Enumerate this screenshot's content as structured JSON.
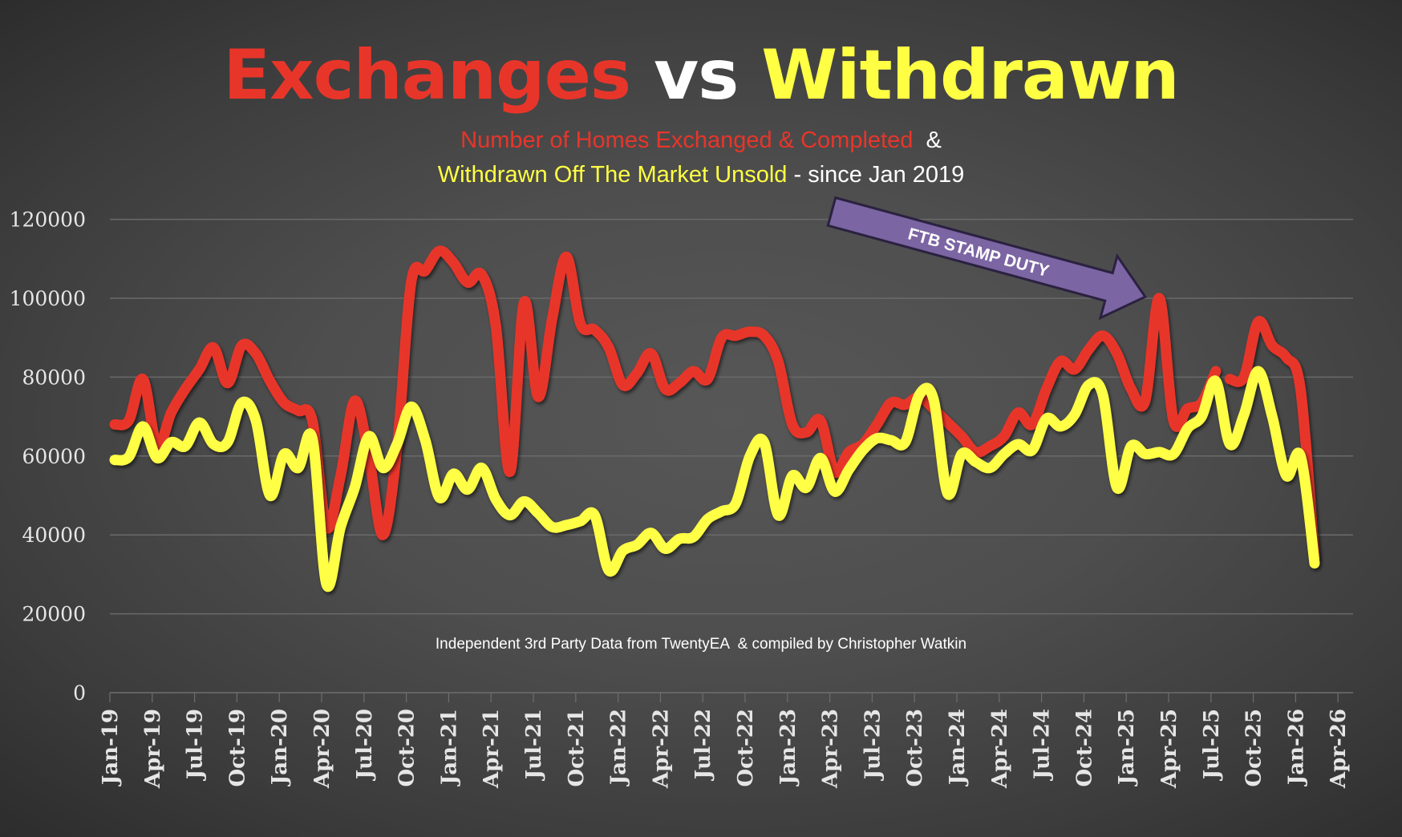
{
  "title": {
    "part1": "Exchanges",
    "part2": "vs",
    "part3": "Withdrawn"
  },
  "subtitle": {
    "line1_red": "Number of Homes Exchanged & Completed",
    "line1_white": "&",
    "line2_yellow": "Withdrawn Off The Market Unsold",
    "line2_white": "- since Jan 2019"
  },
  "footnote": "Independent 3rd Party Data from TwentyEA  & compiled by Christopher Watkin",
  "annotation": {
    "text": "FTB STAMP DUTY",
    "points_to": "Mar-25",
    "color": "#7B65A3"
  },
  "colors": {
    "exchanges": "#E8352A",
    "withdrawn": "#FFFF44",
    "grid": "#6a6a6a",
    "tick_text": "#E6E6E6"
  },
  "chart_data": {
    "type": "line",
    "title": "Exchanges vs Withdrawn",
    "subtitle": "Number of Homes Exchanged & Completed & Withdrawn Off The Market Unsold - since Jan 2019",
    "xlabel": "",
    "ylabel": "",
    "ylim": [
      0,
      120000
    ],
    "yticks": [
      "0",
      "20000",
      "40000",
      "60000",
      "80000",
      "100000",
      "120000"
    ],
    "ytick_values": [
      0,
      20000,
      40000,
      60000,
      80000,
      100000,
      120000
    ],
    "xticks": [
      "Jan-19",
      "Apr-19",
      "Jul-19",
      "Oct-19",
      "Jan-20",
      "Apr-20",
      "Jul-20",
      "Oct-20",
      "Jan-21",
      "Apr-21",
      "Jul-21",
      "Oct-21",
      "Jan-22",
      "Apr-22",
      "Jul-22",
      "Oct-22",
      "Jan-23",
      "Apr-23",
      "Jul-23",
      "Oct-23",
      "Jan-24",
      "Apr-24",
      "Jul-24",
      "Oct-24",
      "Jan-25",
      "Apr-25",
      "Jul-25",
      "Oct-25",
      "Jan-26",
      "Apr-26"
    ],
    "x_start": "Jan-19",
    "x_end": "Feb-26",
    "x_unit": "month",
    "grid": true,
    "legend": "none (series identified by title colours)",
    "series": [
      {
        "name": "Exchanges",
        "color": "#E8352A",
        "break_after_month_index": 78,
        "values": [
          68000,
          69000,
          79500,
          62500,
          71000,
          77000,
          82000,
          87500,
          78500,
          88000,
          86000,
          79000,
          73500,
          71500,
          69000,
          42000,
          55000,
          74000,
          60000,
          40000,
          62000,
          104000,
          107000,
          112000,
          109000,
          104000,
          106000,
          93000,
          56000,
          99000,
          75000,
          95000,
          110500,
          93500,
          92000,
          87500,
          78000,
          81000,
          86000,
          77000,
          78500,
          81500,
          79500,
          90000,
          90500,
          91500,
          90500,
          84000,
          68000,
          66000,
          69000,
          56000,
          61000,
          63000,
          68000,
          73500,
          73000,
          75000,
          72000,
          68500,
          65000,
          61000,
          62500,
          65000,
          71000,
          68000,
          77000,
          84000,
          82000,
          87000,
          90500,
          86000,
          77000,
          74000,
          100000,
          69000,
          72000,
          73500,
          81500,
          79500,
          80000,
          94000,
          88000,
          85000,
          77000,
          34000
        ]
      },
      {
        "name": "Withdrawn",
        "color": "#FFFF44",
        "values": [
          59000,
          59800,
          67500,
          59500,
          63500,
          62500,
          68500,
          63000,
          63500,
          73500,
          69000,
          50000,
          60500,
          57000,
          64500,
          27500,
          42000,
          52000,
          65000,
          57000,
          63000,
          72500,
          64000,
          49500,
          55500,
          51500,
          57000,
          49000,
          45000,
          48500,
          45500,
          42000,
          42500,
          43500,
          45000,
          31000,
          36000,
          37500,
          40500,
          36500,
          39000,
          39500,
          44000,
          46000,
          48000,
          60000,
          63500,
          45000,
          55000,
          52000,
          59500,
          51000,
          56500,
          61500,
          64500,
          64000,
          63500,
          75500,
          74500,
          50500,
          60500,
          58500,
          57000,
          60500,
          63000,
          61500,
          69500,
          67500,
          70500,
          78000,
          75500,
          52000,
          62500,
          60500,
          61000,
          60500,
          67000,
          70000,
          79000,
          63000,
          70500,
          81500,
          70000,
          55000,
          60000,
          32800
        ]
      }
    ]
  }
}
